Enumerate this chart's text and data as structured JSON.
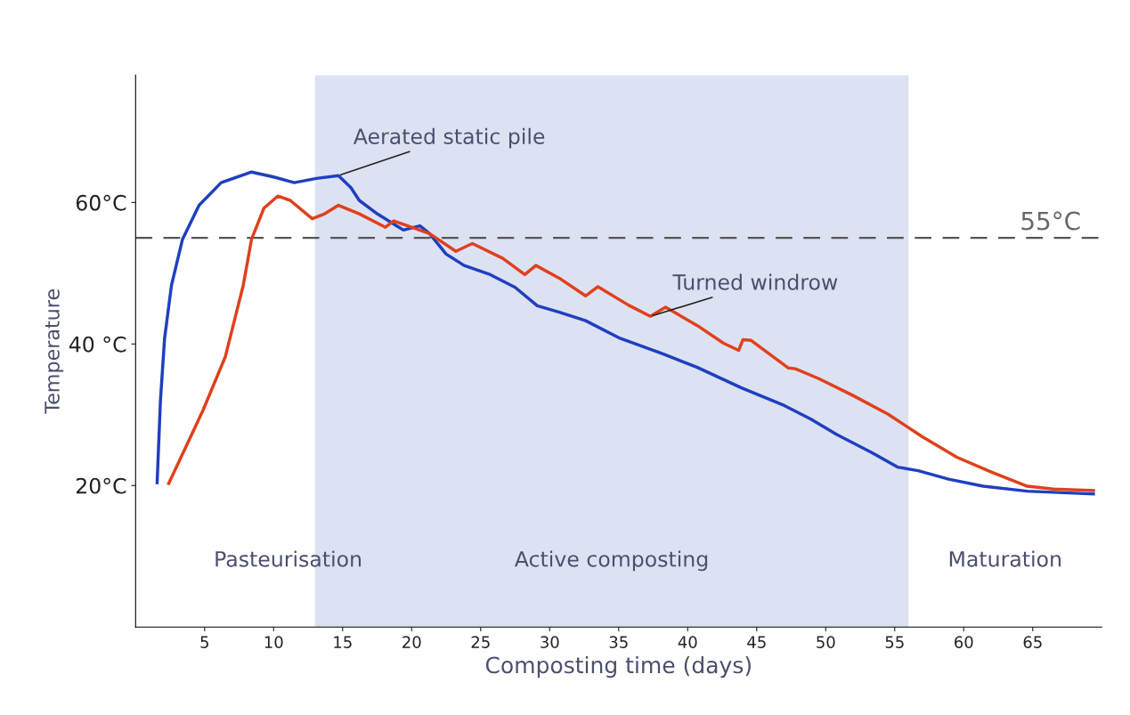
{
  "chart_data": {
    "type": "line",
    "xlabel": "Composting time (days)",
    "ylabel": "Temperature",
    "xlim": [
      0,
      70
    ],
    "ylim": [
      0,
      78
    ],
    "xticks": [
      5,
      10,
      15,
      20,
      25,
      30,
      35,
      40,
      45,
      50,
      55,
      60,
      65
    ],
    "yticks": [
      {
        "value": 20,
        "label": "20°C"
      },
      {
        "value": 40,
        "label": "40 °C"
      },
      {
        "value": 60,
        "label": "60°C"
      }
    ],
    "grid": false,
    "legend": false,
    "line_style": "solid",
    "marker": "none",
    "series": [
      {
        "name": "Aerated static pile",
        "color": "#1f3fbf",
        "x": [
          1.56,
          1.8,
          2.1,
          2.6,
          3.4,
          4.6,
          6.2,
          8.4,
          10,
          11.5,
          13.1,
          14.7,
          15.6,
          16.2,
          17.5,
          19.4,
          20.6,
          21.3,
          22.5,
          23.8,
          25.7,
          27.5,
          29.1,
          30.7,
          32.6,
          35.1,
          38.2,
          40.7,
          43.9,
          47,
          48.9,
          50.8,
          53.3,
          55.2,
          56.7,
          58.9,
          61.4,
          64.6,
          69.4
        ],
        "values": [
          20.4,
          32,
          40.8,
          48.3,
          54.8,
          59.6,
          62.8,
          64.3,
          63.6,
          62.8,
          63.4,
          63.8,
          62.1,
          60.3,
          58.4,
          56.1,
          56.7,
          55.6,
          52.7,
          51.1,
          49.8,
          48,
          45.4,
          44.5,
          43.3,
          40.8,
          38.6,
          36.7,
          33.8,
          31.3,
          29.4,
          27.2,
          24.7,
          22.6,
          22.1,
          20.9,
          19.9,
          19.2,
          18.8
        ]
      },
      {
        "name": "Turned windrow",
        "color": "#e0401c",
        "x": [
          2.4,
          3.7,
          4.9,
          6.5,
          7.8,
          8.4,
          9.3,
          10.3,
          11.2,
          12.8,
          13.7,
          14.7,
          16.2,
          18.1,
          18.7,
          21.3,
          23.2,
          24.4,
          26.6,
          28.2,
          29,
          30.7,
          32.6,
          33.5,
          35.7,
          37.3,
          38.4,
          40.7,
          42.6,
          43.7,
          44,
          44.6,
          47.3,
          47.8,
          49.5,
          52,
          54.5,
          57,
          59.5,
          62,
          64.6,
          66.5,
          69.4
        ],
        "values": [
          20.3,
          25.7,
          30.7,
          38.2,
          48.3,
          54.8,
          59.2,
          60.9,
          60.3,
          57.7,
          58.4,
          59.6,
          58.4,
          56.5,
          57.4,
          55.6,
          53.1,
          54.2,
          52.1,
          49.8,
          51.1,
          49.3,
          46.8,
          48.1,
          45.5,
          43.9,
          45.2,
          42.6,
          40.1,
          39.1,
          40.6,
          40.5,
          36.6,
          36.5,
          35.1,
          32.7,
          30.1,
          26.9,
          24,
          21.9,
          19.9,
          19.5,
          19.3
        ]
      }
    ],
    "ref_lines": [
      {
        "axis": "y",
        "value": 55,
        "label": "55°C",
        "color": "#555555",
        "line_style": "dashed"
      }
    ],
    "bands": [
      {
        "axis": "x",
        "from": 13,
        "to": 56,
        "color": "#dde2f3"
      }
    ],
    "annotations": [
      "Pasteurisation",
      "Active composting",
      "Maturation"
    ]
  }
}
